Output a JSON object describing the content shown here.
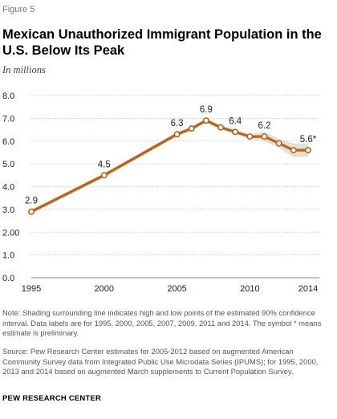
{
  "header": {
    "figure_label": "Figure 5",
    "title": "Mexican Unauthorized  Immigrant Population in the U.S. Below Its Peak",
    "subtitle": "In millions"
  },
  "chart_data": {
    "type": "line",
    "title": "Mexican Unauthorized  Immigrant Population in the U.S. Below Its Peak",
    "subtitle": "In millions",
    "xlabel": "",
    "ylabel": "",
    "xlim": [
      1995,
      2014
    ],
    "ylim": [
      0,
      8
    ],
    "x_ticks": [
      "1995",
      "2000",
      "2005",
      "2010",
      "2014"
    ],
    "x_tick_values": [
      1995,
      2000,
      2005,
      2010,
      2014
    ],
    "y_ticks": [
      "0.0",
      "1.0",
      "2.00",
      "3.0",
      "4.0",
      "5.0",
      "6.0",
      "7.0",
      "8.0"
    ],
    "y_tick_values": [
      0,
      1,
      2,
      3,
      4,
      5,
      6,
      7,
      8
    ],
    "grid": "horizontal-dotted",
    "line_color": "#b5651d",
    "band_color": "#e3e0d3",
    "series": [
      {
        "x": [
          1995,
          2000,
          2005,
          2006,
          2007,
          2008,
          2009,
          2010,
          2011,
          2012,
          2013,
          2014
        ],
        "values": [
          2.9,
          4.5,
          6.3,
          6.55,
          6.9,
          6.6,
          6.4,
          6.2,
          6.2,
          5.9,
          5.6,
          5.6
        ],
        "band_low": [
          2.8,
          4.4,
          6.2,
          6.45,
          6.8,
          6.5,
          6.3,
          6.1,
          6.0,
          5.7,
          5.3,
          5.3
        ],
        "band_high": [
          3.0,
          4.6,
          6.4,
          6.65,
          7.0,
          6.7,
          6.5,
          6.3,
          6.4,
          6.1,
          5.9,
          5.9
        ]
      }
    ],
    "data_labels": [
      {
        "x": 1995,
        "value": 2.9,
        "text": "2.9"
      },
      {
        "x": 2000,
        "value": 4.5,
        "text": "4.5"
      },
      {
        "x": 2005,
        "value": 6.3,
        "text": "6.3"
      },
      {
        "x": 2007,
        "value": 6.9,
        "text": "6.9"
      },
      {
        "x": 2009,
        "value": 6.4,
        "text": "6.4"
      },
      {
        "x": 2011,
        "value": 6.2,
        "text": "6.2"
      },
      {
        "x": 2014,
        "value": 5.6,
        "text": "5.6*"
      }
    ]
  },
  "footer": {
    "note": "Note: Shading surrounding line indicates high and low points of the estimated 90% confidence interval. Data labels are for 1995, 2000, 2005, 2007, 2009, 2011 and 2014. The symbol * means estimate is preliminary.",
    "source": "Source: Pew Research Center estimates for 2005-2012 based on augmented American Community Survey data from Integrated Public Use Microdata Series (IPUMS); for 1995, 2000, 2013 and 2014 based on augmented March supplements to Current Population Survey.",
    "brand": "PEW RESEARCH CENTER"
  }
}
